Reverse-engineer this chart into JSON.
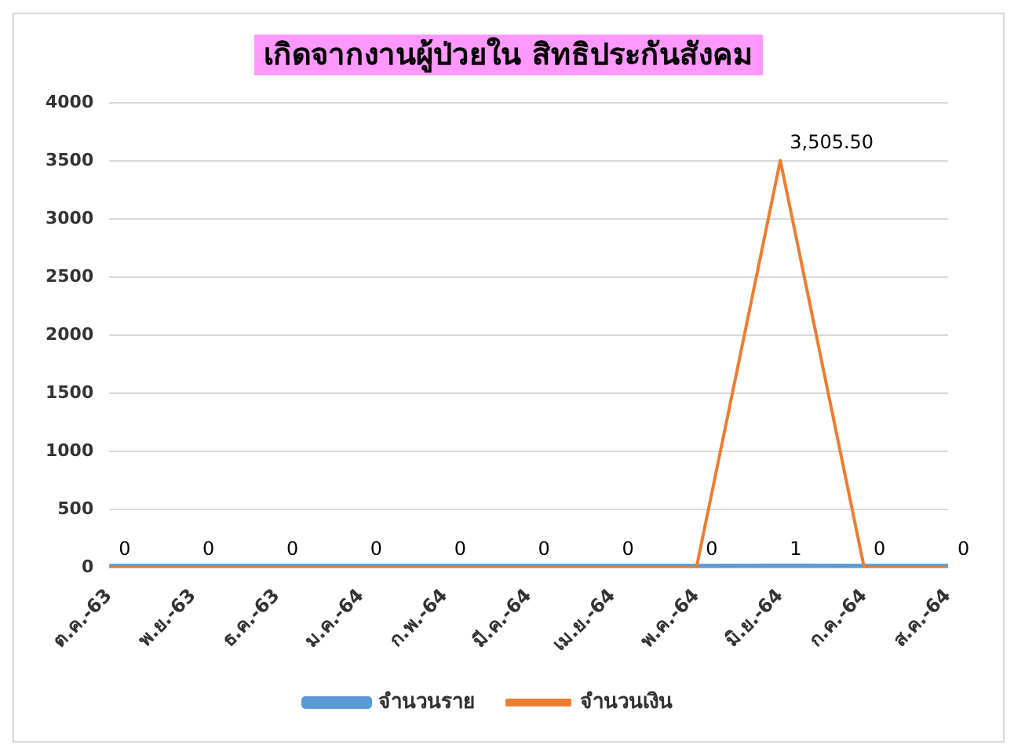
{
  "chart_data": {
    "type": "line",
    "title": "เกิดจากงานผู้ป่วยใน สิทธิประกันสังคม",
    "categories": [
      "ต.ค.-63",
      "พ.ย.-63",
      "ธ.ค.-63",
      "ม.ค.-64",
      "ก.พ.-64",
      "มี.ค.-64",
      "เม.ย.-64",
      "พ.ค.-64",
      "มิ.ย.-64",
      "ก.ค.-64",
      "ส.ค.-64"
    ],
    "series": [
      {
        "name": "จำนวนราย",
        "color": "#5b9bd5",
        "values": [
          0,
          0,
          0,
          0,
          0,
          0,
          0,
          0,
          1,
          0,
          0
        ],
        "value_labels": [
          "0",
          "0",
          "0",
          "0",
          "0",
          "0",
          "0",
          "0",
          "1",
          "0",
          "0"
        ]
      },
      {
        "name": "จำนวนเงิน",
        "color": "#ed7d31",
        "values": [
          0,
          0,
          0,
          0,
          0,
          0,
          0,
          0,
          3505.5,
          0,
          0
        ],
        "value_labels": [
          null,
          null,
          null,
          null,
          null,
          null,
          null,
          null,
          "3,505.50",
          null,
          null
        ]
      }
    ],
    "ylim": [
      0,
      4000
    ],
    "yticks": [
      0,
      500,
      1000,
      1500,
      2000,
      2500,
      3000,
      3500,
      4000
    ],
    "grid": "y",
    "legend": "bottom",
    "marker": "none",
    "line_style": "solid"
  }
}
